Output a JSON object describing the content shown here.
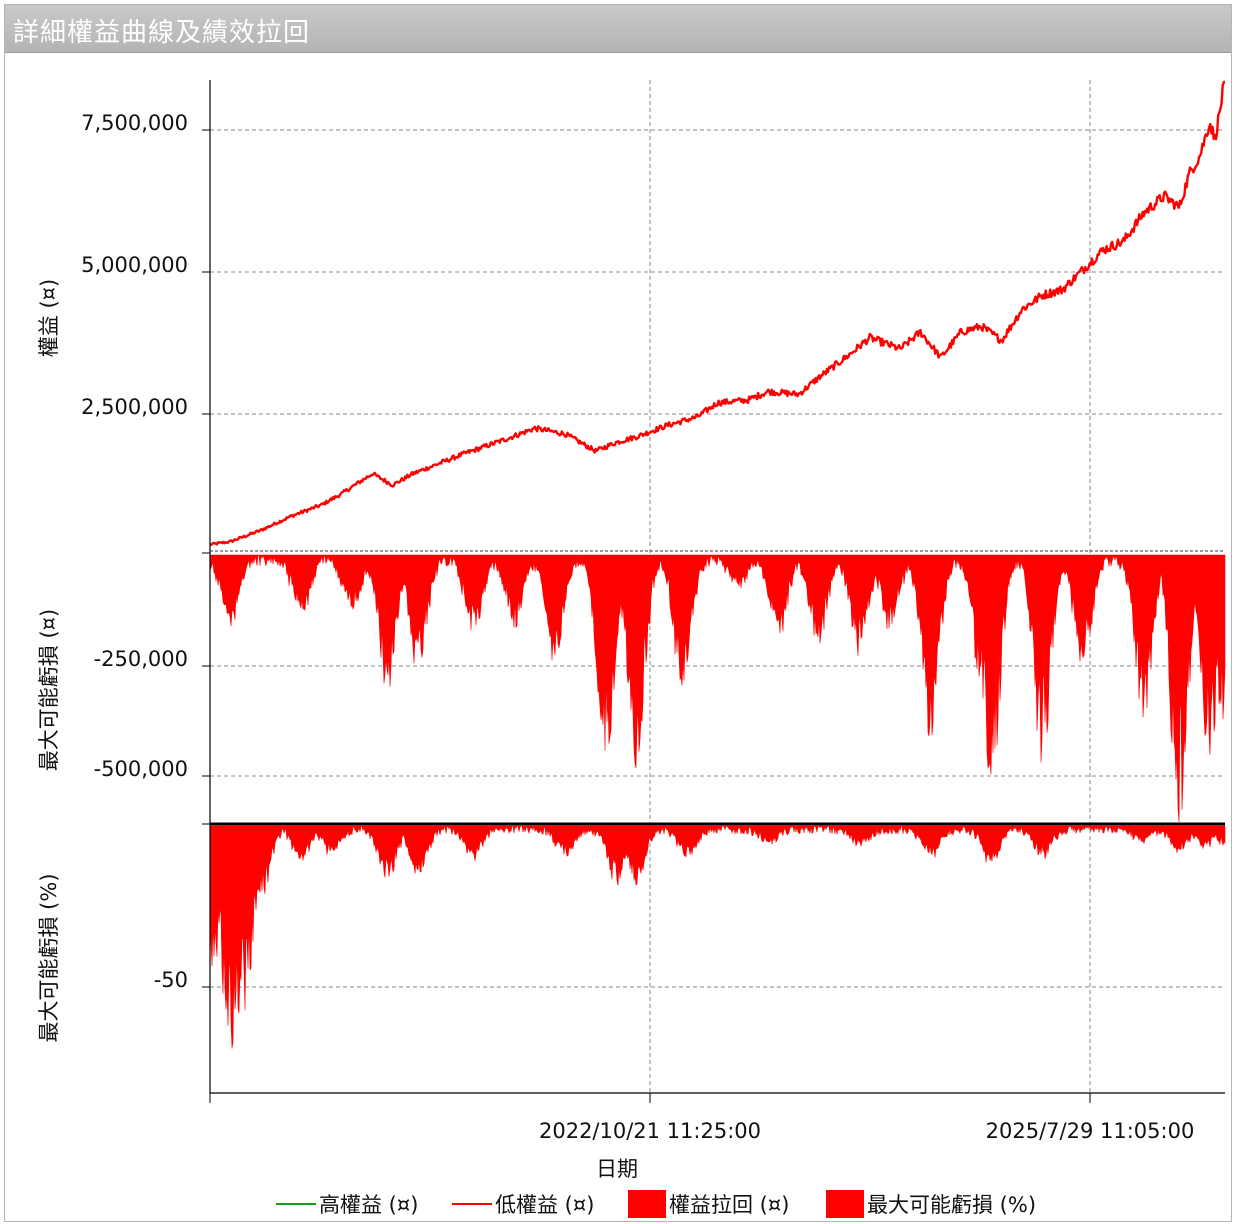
{
  "window": {
    "title": "詳細權益曲線及績效拉回"
  },
  "colors": {
    "high": "#1a9a1a",
    "low": "#ff0000",
    "fill": "#ff0000",
    "grid": "#8a8a8a",
    "axis": "#000000"
  },
  "chart_data": {
    "type": "line",
    "xlabel": "日期",
    "x_ticks": [
      "2022/10/21 11:25:00",
      "2025/7/29 11:05:00"
    ],
    "legend": [
      "高權益 (¤)",
      "低權益 (¤)",
      "權益拉回 (¤)",
      "最大可能虧損 (%)"
    ],
    "legend_position": "bottom",
    "grid": true,
    "panels": [
      {
        "id": "equity",
        "type": "line",
        "ylabel": "權益 (¤)",
        "yticks": [
          "2,500,000",
          "5,000,000",
          "7,500,000"
        ],
        "ylim": [
          0,
          8400000
        ],
        "series_name": "低權益 (¤)",
        "x": [
          0.0,
          0.02,
          0.05,
          0.08,
          0.11,
          0.13,
          0.16,
          0.18,
          0.2,
          0.25,
          0.29,
          0.32,
          0.35,
          0.38,
          0.4,
          0.42,
          0.45,
          0.48,
          0.5,
          0.53,
          0.55,
          0.58,
          0.6,
          0.63,
          0.65,
          0.68,
          0.7,
          0.72,
          0.74,
          0.76,
          0.78,
          0.8,
          0.82,
          0.84,
          0.86,
          0.88,
          0.9,
          0.92,
          0.94,
          0.955,
          0.965,
          0.975,
          0.985,
          0.99,
          0.995,
          1.0
        ],
        "values": [
          150000,
          200000,
          400000,
          650000,
          850000,
          1050000,
          1400000,
          1200000,
          1400000,
          1750000,
          2000000,
          2200000,
          2100000,
          1800000,
          1950000,
          2050000,
          2250000,
          2400000,
          2650000,
          2700000,
          2850000,
          2800000,
          3100000,
          3500000,
          3800000,
          3600000,
          3900000,
          3450000,
          3900000,
          4000000,
          3750000,
          4300000,
          4550000,
          4650000,
          5000000,
          5350000,
          5500000,
          6000000,
          6300000,
          6100000,
          6700000,
          7000000,
          7600000,
          7300000,
          7800000,
          8400000
        ]
      },
      {
        "id": "drawdown",
        "type": "area",
        "ylabel": "最大可能虧損 (¤)",
        "yticks": [
          "-250,000",
          "-500,000"
        ],
        "ylim": [
          -610000,
          0
        ],
        "series_name": "權益拉回 (¤)",
        "troughs": [
          {
            "x": 0.02,
            "v": -150000
          },
          {
            "x": 0.09,
            "v": -130000
          },
          {
            "x": 0.14,
            "v": -120000
          },
          {
            "x": 0.175,
            "v": -300000
          },
          {
            "x": 0.205,
            "v": -270000
          },
          {
            "x": 0.26,
            "v": -180000
          },
          {
            "x": 0.3,
            "v": -150000
          },
          {
            "x": 0.34,
            "v": -240000
          },
          {
            "x": 0.39,
            "v": -470000
          },
          {
            "x": 0.42,
            "v": -490000
          },
          {
            "x": 0.465,
            "v": -300000
          },
          {
            "x": 0.52,
            "v": -60000
          },
          {
            "x": 0.56,
            "v": -180000
          },
          {
            "x": 0.6,
            "v": -200000
          },
          {
            "x": 0.64,
            "v": -220000
          },
          {
            "x": 0.67,
            "v": -160000
          },
          {
            "x": 0.71,
            "v": -430000
          },
          {
            "x": 0.76,
            "v": -300000
          },
          {
            "x": 0.77,
            "v": -520000
          },
          {
            "x": 0.82,
            "v": -450000
          },
          {
            "x": 0.86,
            "v": -250000
          },
          {
            "x": 0.92,
            "v": -390000
          },
          {
            "x": 0.955,
            "v": -600000
          },
          {
            "x": 0.985,
            "v": -460000
          },
          {
            "x": 0.998,
            "v": -380000
          }
        ]
      },
      {
        "id": "drawdown_pct",
        "type": "area",
        "ylabel": "最大可能虧損 (%)",
        "yticks": [
          "-50"
        ],
        "ylim": [
          -71,
          0
        ],
        "series_name": "最大可能虧損 (%)",
        "troughs": [
          {
            "x": 0.005,
            "v": -45
          },
          {
            "x": 0.018,
            "v": -68
          },
          {
            "x": 0.024,
            "v": -71
          },
          {
            "x": 0.035,
            "v": -55
          },
          {
            "x": 0.05,
            "v": -22
          },
          {
            "x": 0.09,
            "v": -10
          },
          {
            "x": 0.12,
            "v": -8
          },
          {
            "x": 0.175,
            "v": -17
          },
          {
            "x": 0.205,
            "v": -15
          },
          {
            "x": 0.26,
            "v": -9
          },
          {
            "x": 0.35,
            "v": -9
          },
          {
            "x": 0.4,
            "v": -17
          },
          {
            "x": 0.42,
            "v": -18
          },
          {
            "x": 0.47,
            "v": -10
          },
          {
            "x": 0.55,
            "v": -4
          },
          {
            "x": 0.64,
            "v": -6
          },
          {
            "x": 0.71,
            "v": -9
          },
          {
            "x": 0.77,
            "v": -11
          },
          {
            "x": 0.82,
            "v": -9
          },
          {
            "x": 0.92,
            "v": -4
          },
          {
            "x": 0.955,
            "v": -7
          },
          {
            "x": 0.98,
            "v": -6
          },
          {
            "x": 1.0,
            "v": -5
          }
        ]
      }
    ]
  }
}
